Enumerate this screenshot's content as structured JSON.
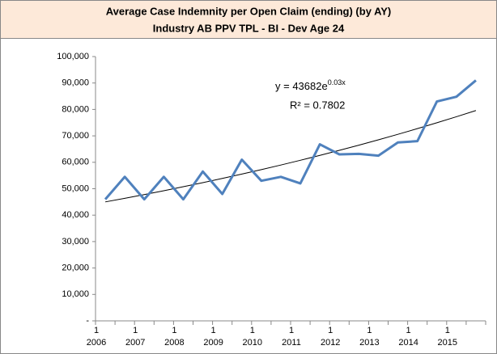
{
  "chart_data": {
    "type": "line",
    "title": "Average Case Indemnity per Open Claim (ending) (by AY)",
    "subtitle": "Industry AB PPV TPL - BI - Dev Age 24",
    "categories": [
      [
        "1",
        "2006"
      ],
      null,
      [
        "1",
        "2007"
      ],
      null,
      [
        "1",
        "2008"
      ],
      null,
      [
        "1",
        "2009"
      ],
      null,
      [
        "1",
        "2010"
      ],
      null,
      [
        "1",
        "2011"
      ],
      null,
      [
        "1",
        "2012"
      ],
      null,
      [
        "1",
        "2013"
      ],
      null,
      [
        "1",
        "2014"
      ],
      null,
      [
        "1",
        "2015"
      ],
      null
    ],
    "values": [
      46000,
      54500,
      46000,
      54500,
      46000,
      56500,
      48000,
      61000,
      53000,
      54500,
      52000,
      66800,
      63000,
      63200,
      62500,
      67500,
      68000,
      83000,
      84800,
      91000
    ],
    "color": "#4f81bd",
    "trendline_values": [
      45012,
      46382,
      47794,
      49250,
      50750,
      52295,
      53888,
      55528,
      57220,
      58962,
      60758,
      62608,
      64514,
      66479,
      68503,
      70589,
      72739,
      74954,
      77236,
      79588
    ],
    "trendline_color": "#000000",
    "annotations": {
      "equation_base": "y = 43682e",
      "equation_exponent": "0.03x",
      "r_squared": "R² = 0.7802"
    },
    "ylim": [
      0,
      100000
    ],
    "yticks": [
      {
        "value": 0,
        "label": "-"
      },
      {
        "value": 10000,
        "label": "10,000"
      },
      {
        "value": 20000,
        "label": "20,000"
      },
      {
        "value": 30000,
        "label": "30,000"
      },
      {
        "value": 40000,
        "label": "40,000"
      },
      {
        "value": 50000,
        "label": "50,000"
      },
      {
        "value": 60000,
        "label": "60,000"
      },
      {
        "value": 70000,
        "label": "70,000"
      },
      {
        "value": 80000,
        "label": "80,000"
      },
      {
        "value": 90000,
        "label": "90,000"
      },
      {
        "value": 100000,
        "label": "100,000"
      }
    ],
    "grid": false
  }
}
